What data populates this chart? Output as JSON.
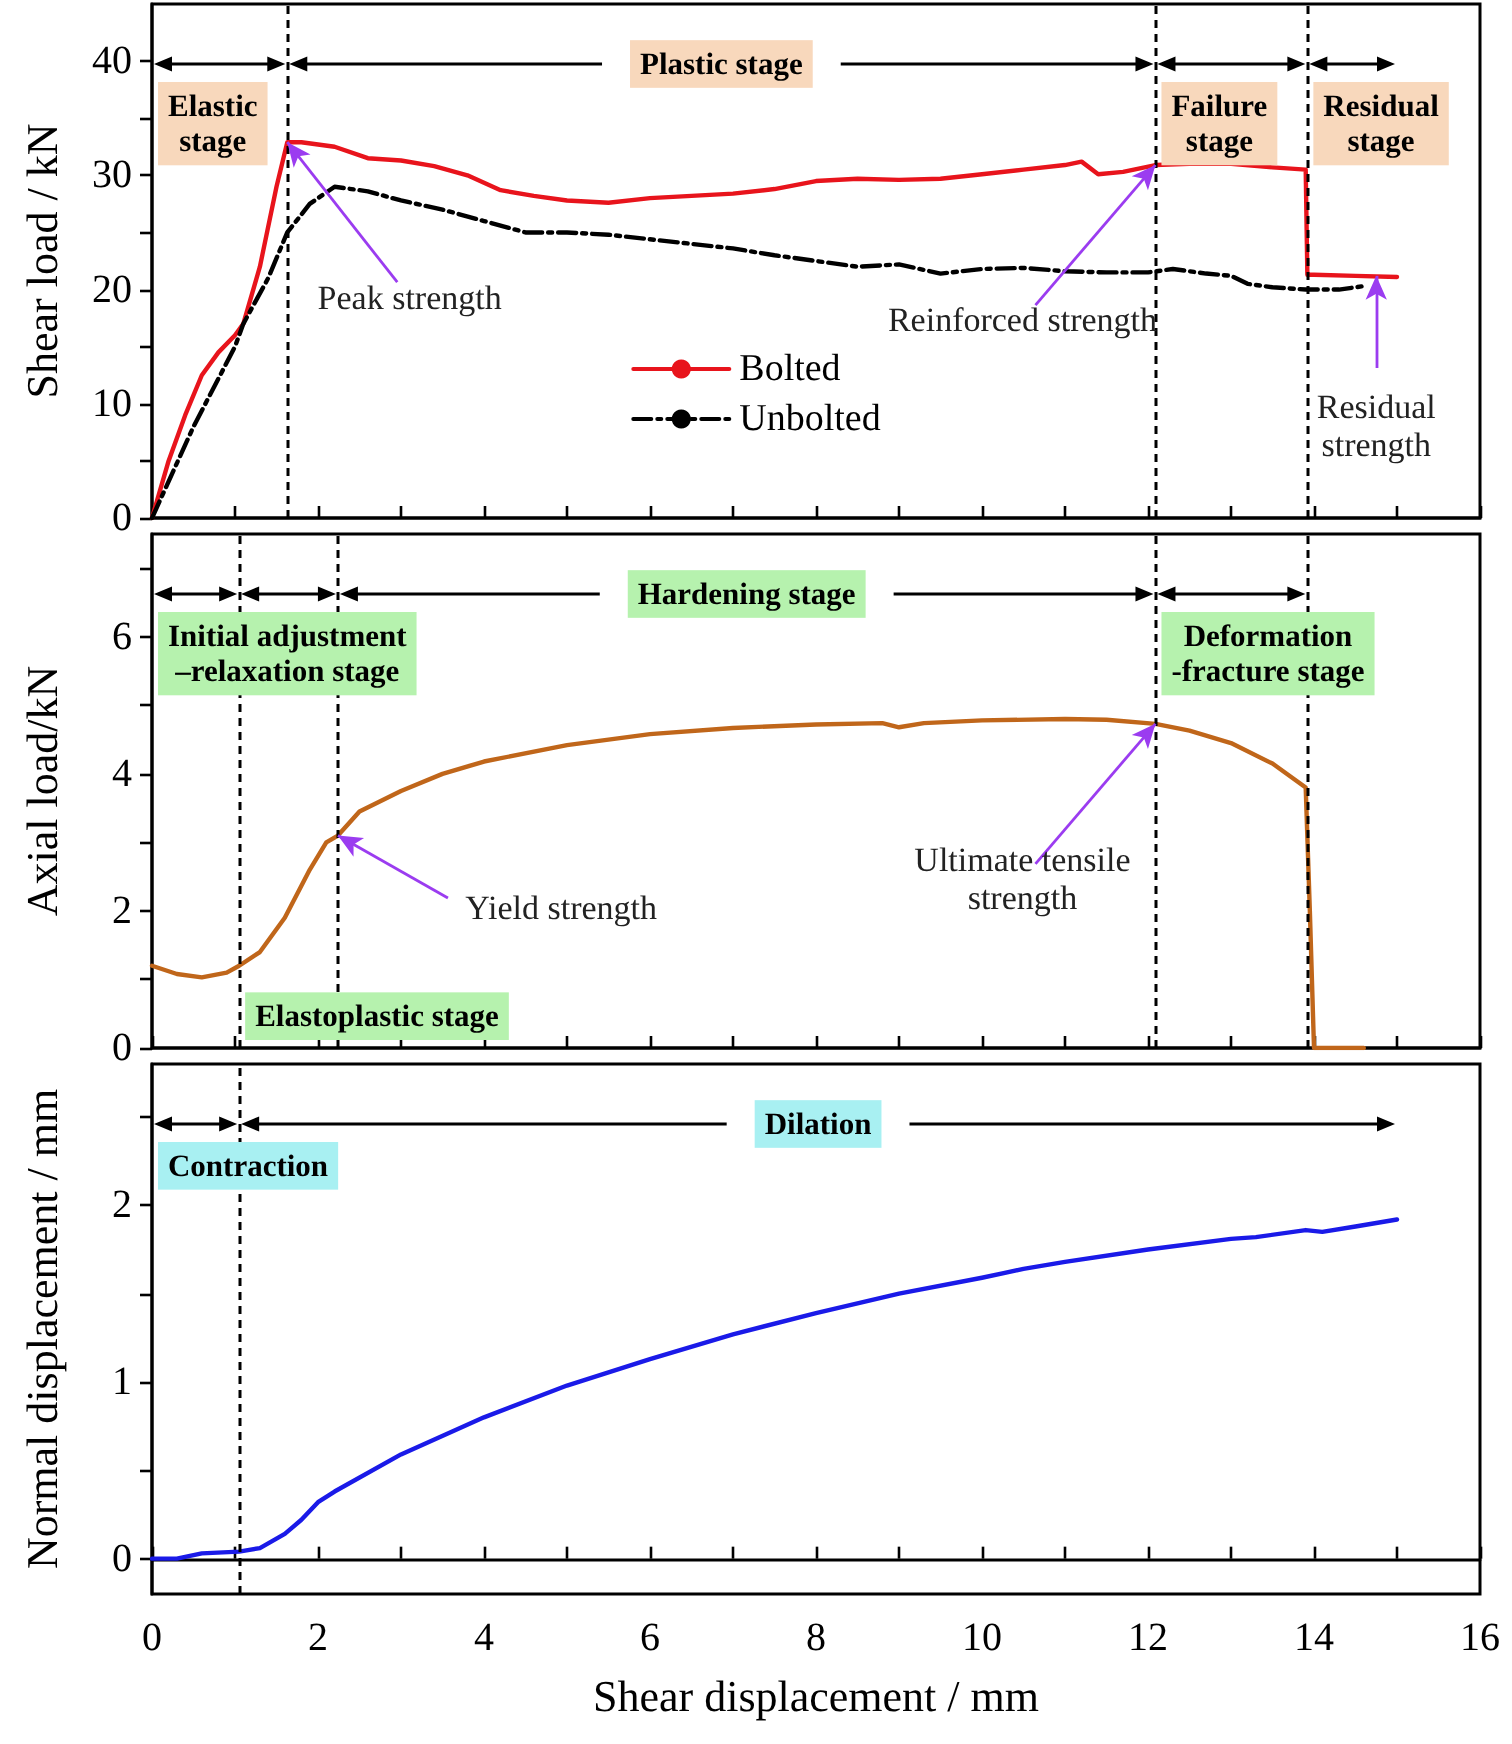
{
  "chart_data": [
    {
      "type": "line",
      "ylabel": "Shear load / kN",
      "xlim": [
        0,
        16
      ],
      "xticks": [
        0,
        {
          "value": 1,
          "label": null
        },
        2,
        {
          "value": 3,
          "label": null
        },
        4,
        {
          "value": 5,
          "label": null
        },
        6,
        {
          "value": 7,
          "label": null
        },
        8,
        {
          "value": 9,
          "label": null
        },
        10,
        {
          "value": 11,
          "label": null
        },
        12,
        {
          "value": 13,
          "label": null
        },
        14,
        {
          "value": 15,
          "label": null
        },
        16
      ],
      "ylim": [
        0,
        45
      ],
      "yticks": [
        0,
        {
          "value": 5,
          "label": null
        },
        10,
        {
          "value": 15,
          "label": null
        },
        20,
        {
          "value": 25,
          "label": null
        },
        30,
        {
          "value": 35,
          "label": null
        },
        40
      ],
      "tick_labels": "y",
      "legend": "bottom",
      "marker": "none",
      "grid": false,
      "series": [
        {
          "name": "Bolted",
          "color": "#e8141c",
          "x": [
            0,
            0.2,
            0.4,
            0.6,
            0.8,
            1.0,
            1.1,
            1.3,
            1.5,
            1.63,
            1.8,
            2.2,
            2.6,
            3.0,
            3.4,
            3.8,
            4.2,
            4.6,
            5.0,
            5.5,
            6.0,
            6.5,
            7.0,
            7.5,
            8.0,
            8.5,
            9.0,
            9.5,
            10.0,
            10.5,
            11.0,
            11.2,
            11.4,
            11.7,
            12.09,
            12.5,
            13.0,
            13.5,
            13.9,
            13.92,
            14.0,
            14.5,
            15.0
          ],
          "values": [
            0,
            5,
            9,
            12.5,
            14.5,
            16,
            17,
            22,
            29,
            32.9,
            32.9,
            32.5,
            31.5,
            31.3,
            30.8,
            30,
            28.7,
            28.2,
            27.8,
            27.6,
            28,
            28.2,
            28.4,
            28.8,
            29.5,
            29.7,
            29.6,
            29.7,
            30.1,
            30.5,
            30.9,
            31.2,
            30.1,
            30.3,
            30.9,
            31,
            31,
            30.7,
            30.5,
            21.3,
            21.3,
            21.2,
            21.1
          ]
        },
        {
          "name": "Unbolted",
          "color": "#000000",
          "line_style": "dashdot",
          "x": [
            0,
            0.5,
            1.0,
            1.1,
            1.4,
            1.63,
            1.9,
            2.2,
            2.6,
            3.0,
            3.5,
            4.0,
            4.5,
            5.0,
            5.5,
            6.0,
            6.5,
            7.0,
            7.5,
            8.0,
            8.5,
            9.0,
            9.5,
            10.0,
            10.5,
            11.0,
            11.5,
            12.0,
            12.3,
            12.7,
            13.0,
            13.2,
            13.5,
            13.9,
            14.0,
            14.3,
            14.6
          ],
          "values": [
            0,
            8,
            15,
            17,
            21,
            25,
            27.5,
            29,
            28.6,
            27.8,
            27,
            26,
            25,
            25,
            24.8,
            24.4,
            24,
            23.6,
            23,
            22.5,
            22,
            22.2,
            21.4,
            21.8,
            21.9,
            21.6,
            21.5,
            21.5,
            21.8,
            21.4,
            21.2,
            20.5,
            20.2,
            20,
            20,
            20,
            20.3
          ]
        }
      ],
      "ref_lines": [
        {
          "axis": "x",
          "value": 1.63
        },
        {
          "axis": "x",
          "value": 12.09
        },
        {
          "axis": "x",
          "value": 13.92
        }
      ],
      "annotations": [
        "Elastic\nstage",
        "Plastic stage",
        "Failure\nstage",
        "Residual\nstage",
        {
          "text": "Peak strength",
          "x": 1.63,
          "y": 32.9
        },
        {
          "text": "Reinforced strength",
          "x": 12.09,
          "y": 30.9
        },
        {
          "text": "Residual\nstrength",
          "x": 14.75,
          "y": 21.2
        }
      ]
    },
    {
      "type": "line",
      "ylabel": "Axial load/kN",
      "xlim": [
        0,
        16
      ],
      "xticks": [
        0,
        {
          "value": 1,
          "label": null
        },
        2,
        {
          "value": 3,
          "label": null
        },
        4,
        {
          "value": 5,
          "label": null
        },
        6,
        {
          "value": 7,
          "label": null
        },
        8,
        {
          "value": 9,
          "label": null
        },
        10,
        {
          "value": 11,
          "label": null
        },
        12,
        {
          "value": 13,
          "label": null
        },
        14,
        {
          "value": 15,
          "label": null
        },
        16
      ],
      "ylim": [
        0,
        7.5
      ],
      "yticks": [
        0,
        {
          "value": 1,
          "label": null
        },
        2,
        {
          "value": 3,
          "label": null
        },
        4,
        {
          "value": 5,
          "label": null
        },
        6,
        {
          "value": 7,
          "label": null
        }
      ],
      "tick_labels": "y",
      "marker": "none",
      "grid": false,
      "series": [
        {
          "color": "#c0661a",
          "x": [
            0,
            0.3,
            0.6,
            0.9,
            1.05,
            1.3,
            1.6,
            1.9,
            2.1,
            2.24,
            2.5,
            3.0,
            3.5,
            4.0,
            5.0,
            6.0,
            7.0,
            8.0,
            8.8,
            9.0,
            9.3,
            10.0,
            11.0,
            11.5,
            12.09,
            12.5,
            13.0,
            13.5,
            13.9,
            13.95,
            14.0,
            14.6
          ],
          "values": [
            1.2,
            1.08,
            1.03,
            1.1,
            1.2,
            1.4,
            1.9,
            2.6,
            3.0,
            3.1,
            3.45,
            3.75,
            4.0,
            4.18,
            4.42,
            4.58,
            4.67,
            4.72,
            4.74,
            4.68,
            4.74,
            4.78,
            4.8,
            4.79,
            4.73,
            4.63,
            4.45,
            4.15,
            3.8,
            2.0,
            0,
            0
          ]
        }
      ],
      "ref_lines": [
        {
          "axis": "x",
          "value": 1.05
        },
        {
          "axis": "x",
          "value": 2.24
        },
        {
          "axis": "x",
          "value": 12.09
        },
        {
          "axis": "x",
          "value": 13.92
        }
      ],
      "annotations": [
        "Initial adjustment\n–relaxation stage",
        "Elastoplastic stage",
        "Hardening stage",
        "Deformation\n-fracture stage",
        {
          "text": "Yield strength",
          "x": 2.24,
          "y": 3.1
        },
        {
          "text": "Ultimate tensile\nstrength",
          "x": 12.09,
          "y": 4.73
        }
      ]
    },
    {
      "type": "line",
      "xlabel": "Shear displacement / mm",
      "ylabel": "Normal displacement / mm",
      "xlim": [
        0,
        16
      ],
      "xticks": [
        0,
        {
          "value": 1,
          "label": null
        },
        2,
        {
          "value": 3,
          "label": null
        },
        4,
        {
          "value": 5,
          "label": null
        },
        6,
        {
          "value": 7,
          "label": null
        },
        8,
        {
          "value": 9,
          "label": null
        },
        10,
        {
          "value": 11,
          "label": null
        },
        12,
        {
          "value": 13,
          "label": null
        },
        14,
        {
          "value": 15,
          "label": null
        },
        16
      ],
      "ylim": [
        -0.2,
        2.8
      ],
      "yticks": [
        0,
        {
          "value": 0.5,
          "label": null
        },
        1,
        {
          "value": 1.5,
          "label": null
        },
        2,
        {
          "value": 2.5,
          "label": null
        }
      ],
      "marker": "none",
      "grid": false,
      "series": [
        {
          "color": "#1a1ae8",
          "x": [
            0,
            0.3,
            0.6,
            1.05,
            1.3,
            1.6,
            1.8,
            2.0,
            2.2,
            3,
            4,
            5,
            6,
            7,
            8,
            9,
            10,
            10.5,
            11,
            12,
            13,
            13.3,
            13.9,
            14.1,
            14.5,
            15
          ],
          "values": [
            0,
            0,
            0.03,
            0.04,
            0.06,
            0.14,
            0.22,
            0.32,
            0.38,
            0.59,
            0.8,
            0.98,
            1.13,
            1.27,
            1.39,
            1.5,
            1.59,
            1.64,
            1.68,
            1.75,
            1.81,
            1.82,
            1.86,
            1.85,
            1.88,
            1.92
          ]
        }
      ],
      "ref_lines": [
        {
          "axis": "x",
          "value": 1.05
        }
      ],
      "annotations": [
        "Contraction",
        "Dilation"
      ]
    }
  ]
}
